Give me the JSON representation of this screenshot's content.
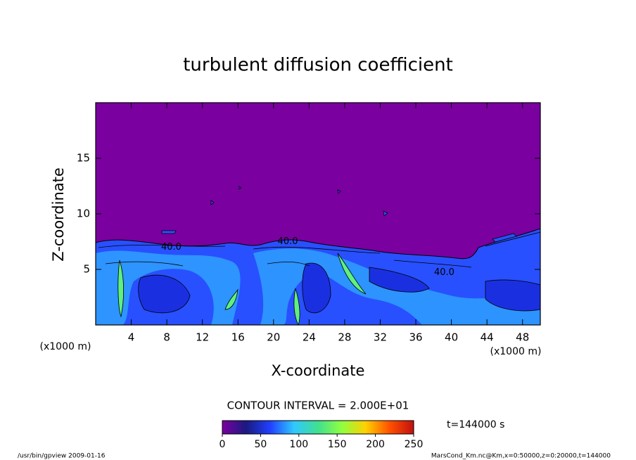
{
  "chart_data": {
    "type": "contour",
    "title": "turbulent diffusion coefficient",
    "x_label": "X-coordinate",
    "y_label": "Z-coordinate",
    "x_unit": "(x1000 m)",
    "y_unit": "(x1000 m)",
    "xlim": [
      0,
      50
    ],
    "ylim": [
      0,
      20
    ],
    "xticks": [
      4,
      8,
      12,
      16,
      20,
      24,
      28,
      32,
      36,
      40,
      44,
      48
    ],
    "yticks": [
      5,
      10,
      15
    ],
    "contour_interval": "CONTOUR INTERVAL = 2.000E+01",
    "contour_labels": [
      {
        "x": 8.5,
        "z": 7.0,
        "label": "40.0"
      },
      {
        "x": 21.6,
        "z": 7.5,
        "label": "40.0"
      },
      {
        "x": 39.2,
        "z": 4.7,
        "label": "40.0"
      }
    ],
    "colorbar": {
      "lim": [
        0,
        250
      ],
      "ticks": [
        0,
        50,
        100,
        150,
        200,
        250
      ],
      "colors": [
        "#7a00a0",
        "#1a1a80",
        "#2040ff",
        "#30c8ff",
        "#40e090",
        "#90ff40",
        "#ffd000",
        "#ff5000",
        "#c01010"
      ]
    },
    "time_label": "t=144000 s",
    "footer_left": "/usr/bin/gpview  2009-01-16",
    "footer_right": "MarsCond_Km.nc@Km,x=0:50000,z=0:20000,t=144000"
  }
}
